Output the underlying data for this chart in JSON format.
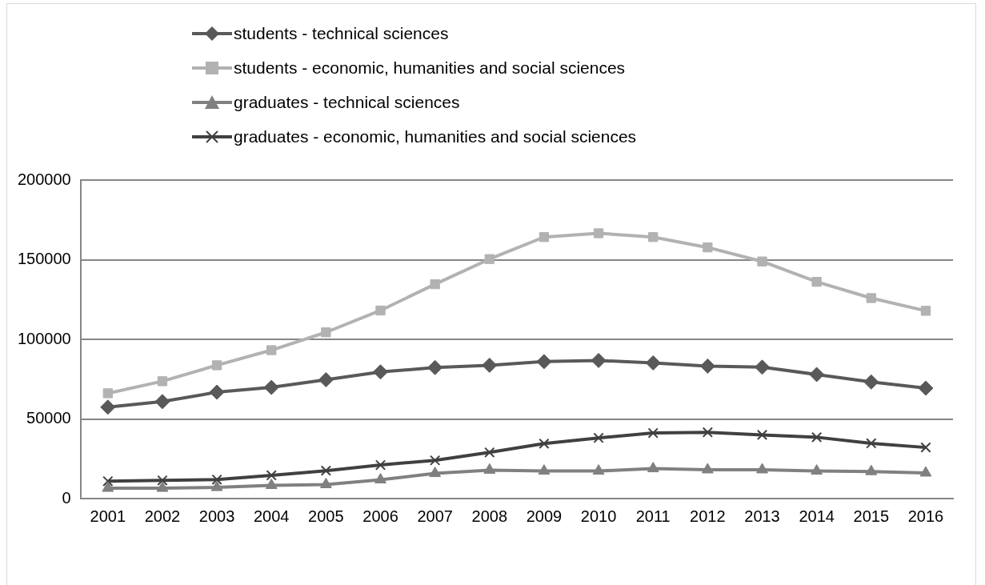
{
  "chart_data": {
    "type": "line",
    "categories": [
      "2001",
      "2002",
      "2003",
      "2004",
      "2005",
      "2006",
      "2007",
      "2008",
      "2009",
      "2010",
      "2011",
      "2012",
      "2013",
      "2014",
      "2015",
      "2016"
    ],
    "series": [
      {
        "name": "students - technical sciences",
        "color": "#595959",
        "marker": "diamond",
        "values": [
          57400,
          60900,
          66800,
          69800,
          74600,
          79500,
          82300,
          83700,
          86000,
          86700,
          85200,
          83200,
          82500,
          77900,
          73200,
          69300
        ]
      },
      {
        "name": "students - economic, humanities and social sciences",
        "color": "#b2b2b2",
        "marker": "square",
        "values": [
          66100,
          73700,
          83700,
          93200,
          104400,
          118100,
          134600,
          150400,
          164200,
          166600,
          164200,
          157700,
          148900,
          136100,
          125900,
          117900
        ]
      },
      {
        "name": "graduates - technical sciences",
        "color": "#808080",
        "marker": "triangle",
        "values": [
          6500,
          6500,
          7000,
          8300,
          8800,
          11800,
          15800,
          17900,
          17300,
          17300,
          18800,
          18100,
          18100,
          17300,
          17000,
          16100
        ]
      },
      {
        "name": "graduates - economic, humanities and social sciences",
        "color": "#404040",
        "marker": "cross",
        "values": [
          10900,
          11400,
          11900,
          14600,
          17500,
          21100,
          24000,
          29000,
          34500,
          38100,
          41200,
          41600,
          40000,
          38500,
          34700,
          32100
        ]
      }
    ],
    "ylim": [
      0,
      200000
    ],
    "yticks": [
      0,
      50000,
      100000,
      150000,
      200000
    ],
    "grid": "y",
    "legend": "top"
  }
}
